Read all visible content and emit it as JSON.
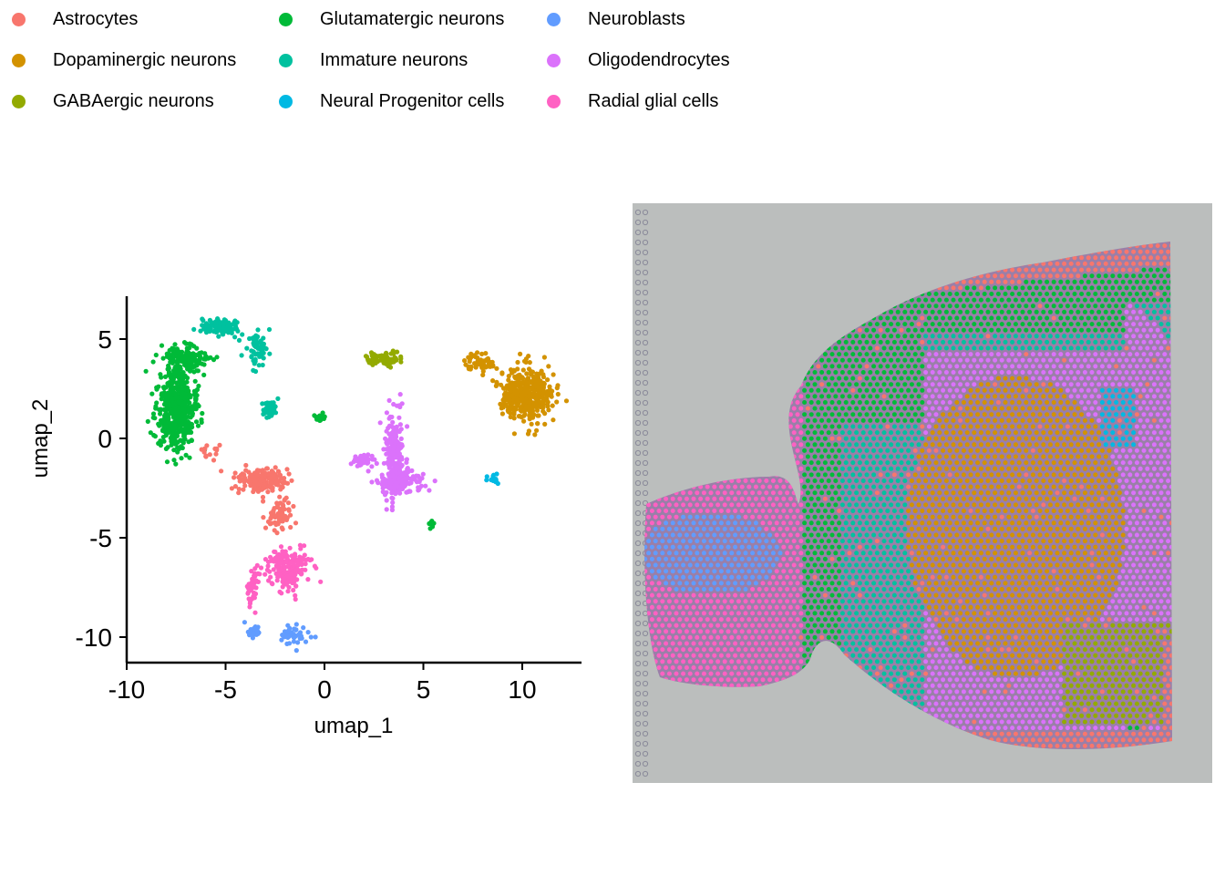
{
  "legend": {
    "items": [
      {
        "label": "Astrocytes",
        "color": "#F8766D"
      },
      {
        "label": "Dopaminergic neurons",
        "color": "#D39200"
      },
      {
        "label": "GABAergic neurons",
        "color": "#93AA00"
      },
      {
        "label": "Glutamatergic neurons",
        "color": "#00BA38"
      },
      {
        "label": "Immature neurons",
        "color": "#00C19F"
      },
      {
        "label": "Neural Progenitor cells",
        "color": "#00B9E3"
      },
      {
        "label": "Neuroblasts",
        "color": "#619CFF"
      },
      {
        "label": "Oligodendrocytes",
        "color": "#DB72FB"
      },
      {
        "label": "Radial glial cells",
        "color": "#FF61C3"
      }
    ]
  },
  "chart_data": [
    {
      "type": "scatter",
      "xlabel": "umap_1",
      "ylabel": "umap_2",
      "xlim": [
        -10,
        13
      ],
      "ylim": [
        -11.5,
        7
      ],
      "xticks": [
        -10,
        -5,
        0,
        5,
        10
      ],
      "yticks": [
        -10,
        -5,
        0,
        5
      ],
      "xtick_labels": [
        "-10",
        "-5",
        "0",
        "5",
        "10"
      ],
      "ytick_labels": [
        "-10",
        "-5",
        "0",
        "5"
      ],
      "grid": false,
      "clusters": [
        {
          "name": "Glutamatergic neurons",
          "color": "#00BA38",
          "x": -7.5,
          "y": 1.5,
          "sx": 0.9,
          "sy": 2.0,
          "n": 520
        },
        {
          "name": "Glutamatergic neurons",
          "color": "#00BA38",
          "x": -7.0,
          "y": 4.0,
          "sx": 1.0,
          "sy": 0.6,
          "n": 140
        },
        {
          "name": "Glutamatergic neurons",
          "color": "#00BA38",
          "x": -0.2,
          "y": 1.0,
          "sx": 0.25,
          "sy": 0.2,
          "n": 20
        },
        {
          "name": "Glutamatergic neurons",
          "color": "#00BA38",
          "x": 5.4,
          "y": -4.3,
          "sx": 0.1,
          "sy": 0.2,
          "n": 15
        },
        {
          "name": "Immature neurons",
          "color": "#00C19F",
          "x": -5.2,
          "y": 5.6,
          "sx": 0.8,
          "sy": 0.4,
          "n": 130
        },
        {
          "name": "Immature neurons",
          "color": "#00C19F",
          "x": -3.4,
          "y": 4.6,
          "sx": 0.5,
          "sy": 0.8,
          "n": 60
        },
        {
          "name": "Immature neurons",
          "color": "#00C19F",
          "x": -2.8,
          "y": 1.5,
          "sx": 0.3,
          "sy": 0.5,
          "n": 45
        },
        {
          "name": "Astrocytes",
          "color": "#F8766D",
          "x": -3.3,
          "y": -2.1,
          "sx": 1.2,
          "sy": 0.6,
          "n": 170
        },
        {
          "name": "Astrocytes",
          "color": "#F8766D",
          "x": -2.2,
          "y": -3.8,
          "sx": 0.7,
          "sy": 0.9,
          "n": 70
        },
        {
          "name": "Astrocytes",
          "color": "#F8766D",
          "x": -5.8,
          "y": -0.6,
          "sx": 0.5,
          "sy": 0.3,
          "n": 15
        },
        {
          "name": "Radial glial cells",
          "color": "#FF61C3",
          "x": -1.8,
          "y": -6.5,
          "sx": 1.0,
          "sy": 0.9,
          "n": 200
        },
        {
          "name": "Radial glial cells",
          "color": "#FF61C3",
          "x": -3.6,
          "y": -7.5,
          "sx": 0.3,
          "sy": 0.9,
          "n": 45
        },
        {
          "name": "Neuroblasts",
          "color": "#619CFF",
          "x": -1.6,
          "y": -9.9,
          "sx": 0.6,
          "sy": 0.4,
          "n": 45
        },
        {
          "name": "Neuroblasts",
          "color": "#619CFF",
          "x": -3.6,
          "y": -9.7,
          "sx": 0.4,
          "sy": 0.4,
          "n": 25
        },
        {
          "name": "GABAergic neurons",
          "color": "#93AA00",
          "x": 3.0,
          "y": 4.0,
          "sx": 0.8,
          "sy": 0.3,
          "n": 80
        },
        {
          "name": "Oligodendrocytes",
          "color": "#DB72FB",
          "x": 3.5,
          "y": -1.0,
          "sx": 0.45,
          "sy": 2.0,
          "n": 220
        },
        {
          "name": "Oligodendrocytes",
          "color": "#DB72FB",
          "x": 3.8,
          "y": -2.2,
          "sx": 1.0,
          "sy": 0.5,
          "n": 130
        },
        {
          "name": "Oligodendrocytes",
          "color": "#DB72FB",
          "x": 2.0,
          "y": -1.1,
          "sx": 0.6,
          "sy": 0.3,
          "n": 40
        },
        {
          "name": "Dopaminergic neurons",
          "color": "#D39200",
          "x": 10.2,
          "y": 2.2,
          "sx": 1.2,
          "sy": 1.2,
          "n": 400
        },
        {
          "name": "Dopaminergic neurons",
          "color": "#D39200",
          "x": 7.8,
          "y": 3.8,
          "sx": 0.8,
          "sy": 0.4,
          "n": 60
        },
        {
          "name": "Neural Progenitor cells",
          "color": "#00B9E3",
          "x": 8.5,
          "y": -2.0,
          "sx": 0.3,
          "sy": 0.2,
          "n": 15
        }
      ]
    },
    {
      "type": "scatter",
      "xlabel": "",
      "ylabel": "",
      "background": "#BBBEBD",
      "regions": [
        {
          "name": "Radial glial cells",
          "color": "#FF61C3"
        },
        {
          "name": "Neuroblasts",
          "color": "#619CFF"
        },
        {
          "name": "Glutamatergic neurons",
          "color": "#00BA38"
        },
        {
          "name": "Immature neurons",
          "color": "#00C19F"
        },
        {
          "name": "Oligodendrocytes",
          "color": "#DB72FB"
        },
        {
          "name": "Dopaminergic neurons",
          "color": "#D39200"
        },
        {
          "name": "GABAergic neurons",
          "color": "#93AA00"
        },
        {
          "name": "Neural Progenitor cells",
          "color": "#00B9E3"
        },
        {
          "name": "Astrocytes",
          "color": "#F8766D"
        }
      ]
    }
  ]
}
